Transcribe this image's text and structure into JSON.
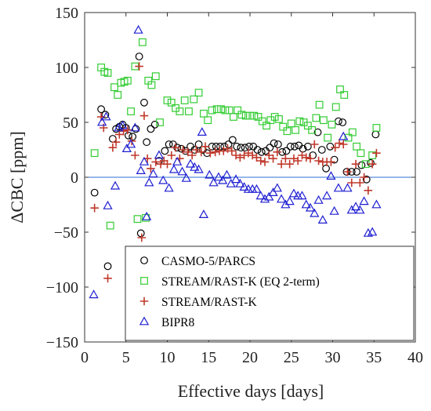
{
  "chart_data": {
    "type": "scatter",
    "title": "",
    "xlabel": "Effective days [days]",
    "ylabel": "ΔCBC [ppm]",
    "xlim": [
      0,
      40
    ],
    "ylim": [
      -150,
      150
    ],
    "xticks": [
      "0",
      "5",
      "10",
      "15",
      "20",
      "25",
      "30",
      "35",
      "40"
    ],
    "yticks": [
      "150",
      "100",
      "50",
      "0",
      "−50",
      "−100",
      "−150"
    ],
    "grid": false,
    "reference_line": 0,
    "legend_position": "bottom-right",
    "series": [
      {
        "name": "CASMO-5/PARCS",
        "marker": "circle",
        "color": "#000000",
        "points": [
          [
            1.2,
            -14
          ],
          [
            2,
            62
          ],
          [
            2.5,
            57
          ],
          [
            2.8,
            -81
          ],
          [
            3.4,
            35
          ],
          [
            3.8,
            44
          ],
          [
            4.2,
            46
          ],
          [
            4.6,
            48
          ],
          [
            5,
            45
          ],
          [
            5.3,
            38
          ],
          [
            5.8,
            37
          ],
          [
            6.2,
            44
          ],
          [
            6.6,
            110
          ],
          [
            6.8,
            -51
          ],
          [
            7.2,
            68
          ],
          [
            7.5,
            32
          ],
          [
            8,
            44
          ],
          [
            8.5,
            48
          ],
          [
            9,
            15
          ],
          [
            9.7,
            24
          ],
          [
            10.2,
            30
          ],
          [
            10.7,
            30
          ],
          [
            11.2,
            27
          ],
          [
            11.7,
            26
          ],
          [
            12.2,
            24
          ],
          [
            12.8,
            28
          ],
          [
            13.3,
            25
          ],
          [
            13.8,
            30
          ],
          [
            14.3,
            25
          ],
          [
            14.8,
            22
          ],
          [
            15.4,
            28
          ],
          [
            15.9,
            28
          ],
          [
            16.4,
            28
          ],
          [
            16.9,
            28
          ],
          [
            17.4,
            30
          ],
          [
            17.9,
            34
          ],
          [
            18.4,
            28
          ],
          [
            18.9,
            27
          ],
          [
            19.4,
            27
          ],
          [
            19.9,
            28
          ],
          [
            20.4,
            28
          ],
          [
            20.9,
            25
          ],
          [
            21.4,
            23
          ],
          [
            21.9,
            24
          ],
          [
            22.4,
            27
          ],
          [
            22.9,
            31
          ],
          [
            23.4,
            30
          ],
          [
            23.9,
            23
          ],
          [
            24.4,
            24
          ],
          [
            24.9,
            28
          ],
          [
            25.4,
            28
          ],
          [
            25.9,
            29
          ],
          [
            26.4,
            26
          ],
          [
            27,
            28
          ],
          [
            27.6,
            20
          ],
          [
            28.2,
            41
          ],
          [
            28.7,
            25
          ],
          [
            29.2,
            8
          ],
          [
            29.7,
            28
          ],
          [
            30.2,
            16
          ],
          [
            30.7,
            51
          ],
          [
            31.2,
            50
          ],
          [
            31.7,
            5
          ],
          [
            32.3,
            5
          ],
          [
            32.9,
            5
          ],
          [
            33.5,
            11
          ],
          [
            34.1,
            -2
          ],
          [
            34.6,
            13
          ],
          [
            35.2,
            39
          ]
        ]
      },
      {
        "name": "STREAM/RAST-K (EQ 2-term)",
        "marker": "square",
        "color": "#33cc33",
        "points": [
          [
            1.2,
            22
          ],
          [
            2,
            100
          ],
          [
            2.4,
            96
          ],
          [
            2.8,
            95
          ],
          [
            3.1,
            -44
          ],
          [
            3.6,
            82
          ],
          [
            4,
            75
          ],
          [
            4.4,
            86
          ],
          [
            4.8,
            87
          ],
          [
            5.2,
            88
          ],
          [
            5.6,
            60
          ],
          [
            6.1,
            101
          ],
          [
            6.4,
            -38
          ],
          [
            7,
            123
          ],
          [
            7.4,
            -37
          ],
          [
            7.7,
            88
          ],
          [
            8.1,
            84
          ],
          [
            8.6,
            92
          ],
          [
            9.1,
            50
          ],
          [
            10,
            70
          ],
          [
            10.5,
            68
          ],
          [
            11,
            63
          ],
          [
            11.5,
            60
          ],
          [
            12.1,
            70
          ],
          [
            12.6,
            60
          ],
          [
            13.2,
            71
          ],
          [
            13.8,
            77
          ],
          [
            14.4,
            58
          ],
          [
            14.9,
            52
          ],
          [
            15.4,
            61
          ],
          [
            16,
            62
          ],
          [
            16.5,
            62
          ],
          [
            17,
            61
          ],
          [
            17.5,
            61
          ],
          [
            18,
            55
          ],
          [
            18.5,
            61
          ],
          [
            19,
            57
          ],
          [
            19.5,
            56
          ],
          [
            20,
            56
          ],
          [
            20.5,
            56
          ],
          [
            21,
            55
          ],
          [
            21.5,
            51
          ],
          [
            22,
            47
          ],
          [
            22.5,
            52
          ],
          [
            23,
            55
          ],
          [
            23.5,
            53
          ],
          [
            24,
            46
          ],
          [
            24.5,
            42
          ],
          [
            25,
            49
          ],
          [
            25.5,
            43
          ],
          [
            26,
            51
          ],
          [
            26.5,
            50
          ],
          [
            27,
            47
          ],
          [
            27.5,
            43
          ],
          [
            28,
            54
          ],
          [
            28.4,
            66
          ],
          [
            28.9,
            52
          ],
          [
            29.4,
            36
          ],
          [
            29.9,
            48
          ],
          [
            30.4,
            64
          ],
          [
            30.9,
            80
          ],
          [
            31.4,
            75
          ],
          [
            31.9,
            36
          ],
          [
            32.4,
            41
          ],
          [
            32.9,
            28
          ],
          [
            33.4,
            22
          ],
          [
            34,
            12
          ],
          [
            34.8,
            20
          ],
          [
            35.3,
            45
          ]
        ]
      },
      {
        "name": "STREAM/RAST-K",
        "marker": "plus",
        "color": "#c0392b",
        "points": [
          [
            1.2,
            -28
          ],
          [
            2,
            55
          ],
          [
            2.3,
            45
          ],
          [
            2.8,
            -92
          ],
          [
            3.4,
            27
          ],
          [
            3.8,
            32
          ],
          [
            4.2,
            39
          ],
          [
            4.7,
            42
          ],
          [
            5.2,
            43
          ],
          [
            5.7,
            33
          ],
          [
            6.1,
            20
          ],
          [
            6.6,
            101
          ],
          [
            6.9,
            -55
          ],
          [
            7.2,
            56
          ],
          [
            7.6,
            17
          ],
          [
            8,
            8
          ],
          [
            8.6,
            14
          ],
          [
            9.2,
            12
          ],
          [
            9.6,
            15
          ],
          [
            10,
            12
          ],
          [
            10.5,
            20
          ],
          [
            11,
            27
          ],
          [
            11.5,
            17
          ],
          [
            11.9,
            25
          ],
          [
            12.5,
            23
          ],
          [
            13,
            20
          ],
          [
            13.5,
            25
          ],
          [
            14.1,
            23
          ],
          [
            14.6,
            28
          ],
          [
            15.2,
            22
          ],
          [
            15.8,
            23
          ],
          [
            16.3,
            24
          ],
          [
            16.8,
            24
          ],
          [
            17.3,
            26
          ],
          [
            17.8,
            24
          ],
          [
            18.3,
            20
          ],
          [
            18.8,
            18
          ],
          [
            19.3,
            20
          ],
          [
            19.8,
            22
          ],
          [
            20.3,
            20
          ],
          [
            20.8,
            18
          ],
          [
            21.3,
            15
          ],
          [
            21.8,
            14
          ],
          [
            22.3,
            20
          ],
          [
            22.8,
            17
          ],
          [
            23.3,
            23
          ],
          [
            23.8,
            12
          ],
          [
            24.3,
            17
          ],
          [
            24.8,
            12
          ],
          [
            25.3,
            17
          ],
          [
            25.8,
            15
          ],
          [
            26.3,
            20
          ],
          [
            26.8,
            18
          ],
          [
            27.3,
            17
          ],
          [
            27.8,
            30
          ],
          [
            28.3,
            15
          ],
          [
            28.8,
            14
          ],
          [
            29.3,
            14
          ],
          [
            29.8,
            14
          ],
          [
            30.3,
            27
          ],
          [
            30.8,
            31
          ],
          [
            31.3,
            30
          ],
          [
            31.8,
            5
          ],
          [
            32.3,
            -5
          ],
          [
            32.8,
            12
          ],
          [
            33.3,
            -5
          ],
          [
            33.8,
            0
          ],
          [
            34.3,
            -12
          ],
          [
            34.8,
            12
          ],
          [
            35.3,
            22
          ]
        ]
      },
      {
        "name": "BIPR8",
        "marker": "triangle",
        "color": "#1f1fd1",
        "points": [
          [
            1.1,
            -107
          ],
          [
            2.1,
            50
          ],
          [
            2.6,
            55
          ],
          [
            2.8,
            -26
          ],
          [
            3.7,
            -8
          ],
          [
            4.1,
            45
          ],
          [
            4.6,
            47
          ],
          [
            5.1,
            26
          ],
          [
            5.6,
            30
          ],
          [
            6.1,
            45
          ],
          [
            6.5,
            134
          ],
          [
            6.8,
            6
          ],
          [
            7.2,
            14
          ],
          [
            7.5,
            -36
          ],
          [
            7.8,
            -5
          ],
          [
            8.3,
            3
          ],
          [
            9,
            20
          ],
          [
            9.5,
            -3
          ],
          [
            10.2,
            -10
          ],
          [
            10.8,
            7
          ],
          [
            11.2,
            14
          ],
          [
            11.8,
            5
          ],
          [
            12.3,
            -1
          ],
          [
            12.8,
            12
          ],
          [
            13.3,
            9
          ],
          [
            13.8,
            7
          ],
          [
            14.2,
            41
          ],
          [
            14.4,
            -34
          ],
          [
            15.1,
            2
          ],
          [
            15.6,
            -5
          ],
          [
            16.2,
            0
          ],
          [
            16.7,
            -3
          ],
          [
            17.2,
            2
          ],
          [
            17.7,
            -6
          ],
          [
            18.3,
            -2
          ],
          [
            18.8,
            -6
          ],
          [
            19.3,
            -9
          ],
          [
            19.8,
            -11
          ],
          [
            20.3,
            -11
          ],
          [
            20.8,
            -11
          ],
          [
            21.3,
            -17
          ],
          [
            21.8,
            -20
          ],
          [
            22.3,
            -18
          ],
          [
            22.8,
            -14
          ],
          [
            23.3,
            -10
          ],
          [
            23.8,
            -20
          ],
          [
            24.3,
            -25
          ],
          [
            24.8,
            -22
          ],
          [
            25.3,
            -15
          ],
          [
            25.8,
            -17
          ],
          [
            26.3,
            -17
          ],
          [
            26.8,
            -25
          ],
          [
            27.3,
            -28
          ],
          [
            27.8,
            -33
          ],
          [
            28.3,
            -21
          ],
          [
            28.8,
            -39
          ],
          [
            29.3,
            -17
          ],
          [
            29.8,
            1
          ],
          [
            30.2,
            -31
          ],
          [
            30.7,
            -10
          ],
          [
            31.3,
            37
          ],
          [
            31.8,
            -10
          ],
          [
            32.3,
            -30
          ],
          [
            32.8,
            -27
          ],
          [
            33.3,
            -30
          ],
          [
            33.8,
            -22
          ],
          [
            34.3,
            -51
          ],
          [
            34.8,
            -50
          ],
          [
            35.3,
            -25
          ]
        ]
      }
    ]
  }
}
